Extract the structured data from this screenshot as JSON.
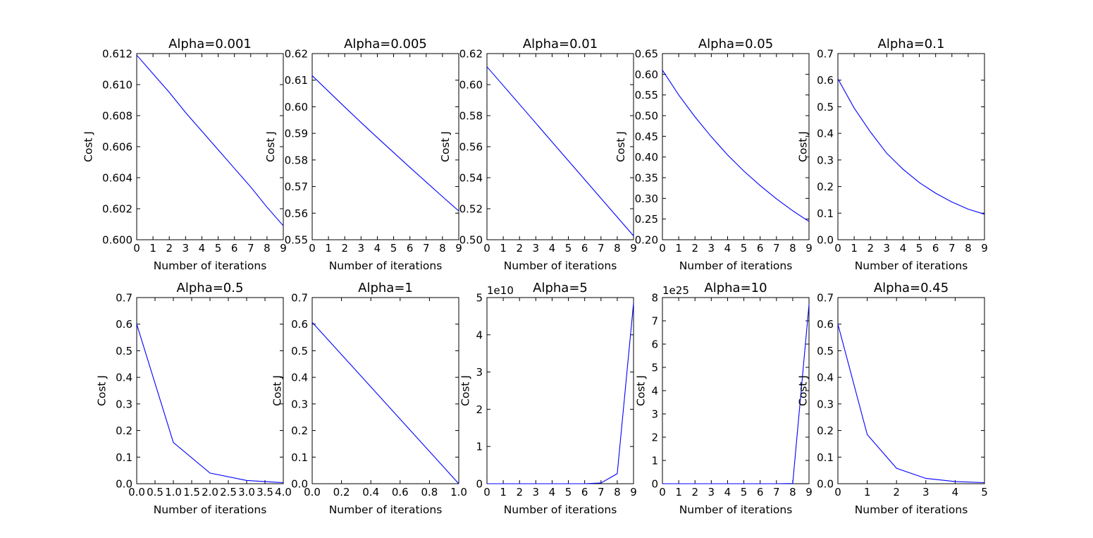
{
  "chart_data": [
    {
      "type": "line",
      "title": "Alpha=0.001",
      "xlabel": "Number of iterations",
      "ylabel": "Cost J",
      "xlim": [
        0,
        9
      ],
      "ylim": [
        0.6,
        0.612
      ],
      "xticks": [
        "0",
        "1",
        "2",
        "3",
        "4",
        "5",
        "6",
        "7",
        "8",
        "9"
      ],
      "yticks": [
        "0.600",
        "0.602",
        "0.604",
        "0.606",
        "0.608",
        "0.610",
        "0.612"
      ],
      "offset_text": "",
      "x": [
        0,
        1,
        2,
        3,
        4,
        5,
        6,
        7,
        8,
        9
      ],
      "y": [
        0.6119,
        0.6107,
        0.6095,
        0.6082,
        0.607,
        0.6058,
        0.6046,
        0.6034,
        0.6021,
        0.6009
      ],
      "color": "#0000ff"
    },
    {
      "type": "line",
      "title": "Alpha=0.005",
      "xlabel": "Number of iterations",
      "ylabel": "Cost J",
      "xlim": [
        0,
        9
      ],
      "ylim": [
        0.55,
        0.62
      ],
      "xticks": [
        "0",
        "1",
        "2",
        "3",
        "4",
        "5",
        "6",
        "7",
        "8",
        "9"
      ],
      "yticks": [
        "0.55",
        "0.56",
        "0.57",
        "0.58",
        "0.59",
        "0.60",
        "0.61",
        "0.62"
      ],
      "offset_text": "",
      "x": [
        0,
        1,
        2,
        3,
        4,
        5,
        6,
        7,
        8,
        9
      ],
      "y": [
        0.6117,
        0.6058,
        0.5999,
        0.5941,
        0.5884,
        0.5828,
        0.5772,
        0.5717,
        0.5662,
        0.5608
      ],
      "color": "#0000ff"
    },
    {
      "type": "line",
      "title": "Alpha=0.01",
      "xlabel": "Number of iterations",
      "ylabel": "Cost J",
      "xlim": [
        0,
        9
      ],
      "ylim": [
        0.5,
        0.62
      ],
      "xticks": [
        "0",
        "1",
        "2",
        "3",
        "4",
        "5",
        "6",
        "7",
        "8",
        "9"
      ],
      "yticks": [
        "0.50",
        "0.52",
        "0.54",
        "0.56",
        "0.58",
        "0.60",
        "0.62"
      ],
      "offset_text": "",
      "x": [
        0,
        1,
        2,
        3,
        4,
        5,
        6,
        7,
        8,
        9
      ],
      "y": [
        0.6115,
        0.5994,
        0.5873,
        0.5752,
        0.563,
        0.5509,
        0.5388,
        0.5267,
        0.5146,
        0.5025
      ],
      "color": "#0000ff"
    },
    {
      "type": "line",
      "title": "Alpha=0.05",
      "xlabel": "Number of iterations",
      "ylabel": "Cost J",
      "xlim": [
        0,
        9
      ],
      "ylim": [
        0.2,
        0.65
      ],
      "xticks": [
        "0",
        "1",
        "2",
        "3",
        "4",
        "5",
        "6",
        "7",
        "8",
        "9"
      ],
      "yticks": [
        "0.20",
        "0.25",
        "0.30",
        "0.35",
        "0.40",
        "0.45",
        "0.50",
        "0.55",
        "0.60",
        "0.65"
      ],
      "offset_text": "",
      "x": [
        0,
        1,
        2,
        3,
        4,
        5,
        6,
        7,
        8,
        9
      ],
      "y": [
        0.61,
        0.55,
        0.497,
        0.449,
        0.405,
        0.366,
        0.331,
        0.299,
        0.27,
        0.244
      ],
      "color": "#0000ff"
    },
    {
      "type": "line",
      "title": "Alpha=0.1",
      "xlabel": "Number of iterations",
      "ylabel": "Cost J",
      "xlim": [
        0,
        9
      ],
      "ylim": [
        0.0,
        0.7
      ],
      "xticks": [
        "0",
        "1",
        "2",
        "3",
        "4",
        "5",
        "6",
        "7",
        "8",
        "9"
      ],
      "yticks": [
        "0.0",
        "0.1",
        "0.2",
        "0.3",
        "0.4",
        "0.5",
        "0.6",
        "0.7"
      ],
      "offset_text": "",
      "x": [
        0,
        1,
        2,
        3,
        4,
        5,
        6,
        7,
        8,
        9
      ],
      "y": [
        0.605,
        0.495,
        0.405,
        0.325,
        0.265,
        0.215,
        0.175,
        0.142,
        0.115,
        0.096
      ],
      "color": "#0000ff"
    },
    {
      "type": "line",
      "title": "Alpha=0.5",
      "xlabel": "Number of iterations",
      "ylabel": "Cost J",
      "xlim": [
        0,
        4
      ],
      "ylim": [
        0.0,
        0.7
      ],
      "xticks": [
        "0.0",
        "0.5",
        "1.0",
        "1.5",
        "2.0",
        "2.5",
        "3.0",
        "3.5",
        "4.0"
      ],
      "yticks": [
        "0.0",
        "0.1",
        "0.2",
        "0.3",
        "0.4",
        "0.5",
        "0.6",
        "0.7"
      ],
      "offset_text": "",
      "x": [
        0,
        1,
        2,
        3,
        4
      ],
      "y": [
        0.6,
        0.155,
        0.04,
        0.012,
        0.004
      ],
      "color": "#0000ff"
    },
    {
      "type": "line",
      "title": "Alpha=1",
      "xlabel": "Number of iterations",
      "ylabel": "Cost J",
      "xlim": [
        0,
        1
      ],
      "ylim": [
        0.0,
        0.7
      ],
      "xticks": [
        "0.0",
        "0.2",
        "0.4",
        "0.6",
        "0.8",
        "1.0"
      ],
      "yticks": [
        "0.0",
        "0.1",
        "0.2",
        "0.3",
        "0.4",
        "0.5",
        "0.6",
        "0.7"
      ],
      "offset_text": "",
      "x": [
        0,
        1
      ],
      "y": [
        0.607,
        0.0
      ],
      "color": "#0000ff"
    },
    {
      "type": "line",
      "title": "Alpha=5",
      "xlabel": "Number of iterations",
      "ylabel": "Cost J",
      "xlim": [
        0,
        9
      ],
      "ylim": [
        0,
        5
      ],
      "xticks": [
        "0",
        "1",
        "2",
        "3",
        "4",
        "5",
        "6",
        "7",
        "8",
        "9"
      ],
      "yticks": [
        "0",
        "1",
        "2",
        "3",
        "4",
        "5"
      ],
      "offset_text": "1e10",
      "x": [
        0,
        1,
        2,
        3,
        4,
        5,
        6,
        7,
        8,
        9
      ],
      "y": [
        0.0,
        0.0,
        0.0,
        0.0,
        0.0,
        0.0,
        0.0001,
        0.02,
        0.27,
        4.85
      ],
      "color": "#0000ff"
    },
    {
      "type": "line",
      "title": "Alpha=10",
      "xlabel": "Number of iterations",
      "ylabel": "Cost J",
      "xlim": [
        0,
        9
      ],
      "ylim": [
        0,
        8
      ],
      "xticks": [
        "0",
        "1",
        "2",
        "3",
        "4",
        "5",
        "6",
        "7",
        "8",
        "9"
      ],
      "yticks": [
        "0",
        "1",
        "2",
        "3",
        "4",
        "5",
        "6",
        "7",
        "8"
      ],
      "offset_text": "1e25",
      "x": [
        0,
        1,
        2,
        3,
        4,
        5,
        6,
        7,
        8,
        9
      ],
      "y": [
        0.0,
        0.0,
        0.0,
        0.0,
        0.0,
        0.0,
        0.0,
        0.0,
        0.01,
        7.7
      ],
      "color": "#0000ff"
    },
    {
      "type": "line",
      "title": "Alpha=0.45",
      "xlabel": "Number of iterations",
      "ylabel": "Cost J",
      "xlim": [
        0,
        5
      ],
      "ylim": [
        0.0,
        0.7
      ],
      "xticks": [
        "0",
        "1",
        "2",
        "3",
        "4",
        "5"
      ],
      "yticks": [
        "0.0",
        "0.1",
        "0.2",
        "0.3",
        "0.4",
        "0.5",
        "0.6",
        "0.7"
      ],
      "offset_text": "",
      "x": [
        0,
        1,
        2,
        3,
        4,
        5
      ],
      "y": [
        0.6,
        0.185,
        0.058,
        0.02,
        0.008,
        0.004
      ],
      "color": "#0000ff"
    }
  ]
}
